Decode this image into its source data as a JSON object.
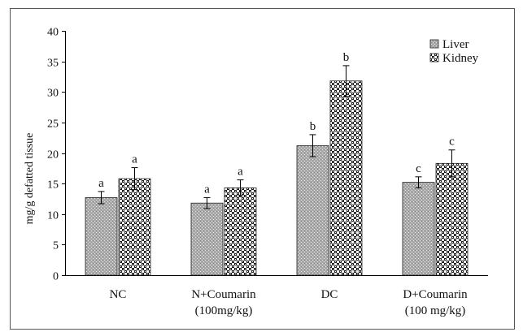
{
  "chart_data": {
    "type": "bar",
    "ylabel": "mg/g defatted tissue",
    "ylim": [
      0,
      40
    ],
    "yticks": [
      0,
      5,
      10,
      15,
      20,
      25,
      30,
      35,
      40
    ],
    "categories": [
      [
        "NC"
      ],
      [
        "N+Coumarin",
        "(100mg/kg)"
      ],
      [
        "DC"
      ],
      [
        "D+Coumarin",
        "(100 mg/kg)"
      ]
    ],
    "series": [
      {
        "name": "Liver",
        "values": [
          12.7,
          11.8,
          21.2,
          15.2
        ],
        "errors": [
          1.0,
          0.9,
          1.8,
          0.9
        ],
        "labels": [
          "a",
          "a",
          "b",
          "c"
        ],
        "pattern": "dots",
        "color": "#b5b5b5"
      },
      {
        "name": "Kidney",
        "values": [
          15.8,
          14.3,
          31.8,
          18.3
        ],
        "errors": [
          1.8,
          1.3,
          2.5,
          2.2
        ],
        "labels": [
          "a",
          "a",
          "b",
          "c"
        ],
        "pattern": "checker",
        "color": "#222222"
      }
    ],
    "legend_position": "top-right",
    "grid": false
  }
}
